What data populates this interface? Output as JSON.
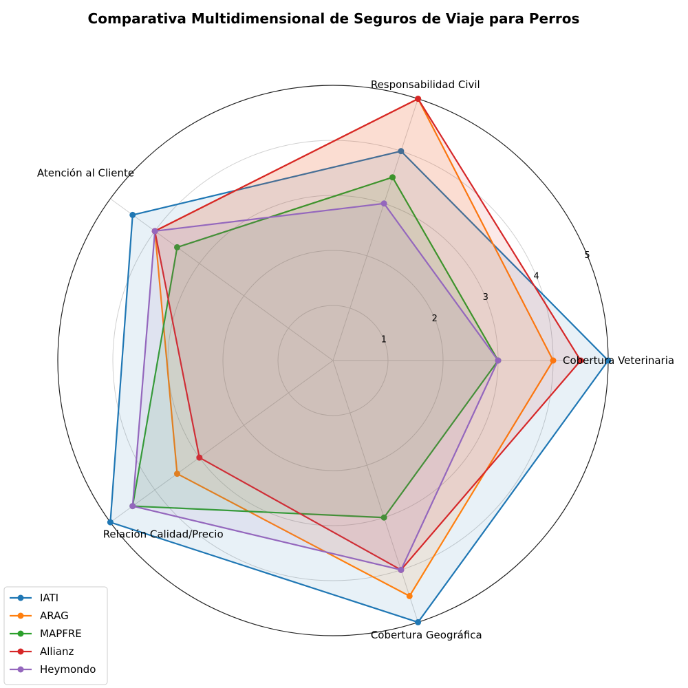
{
  "chart_data": {
    "type": "radar",
    "title": "Comparativa Multidimensional de Seguros de Viaje para Perros",
    "categories": [
      "Cobertura Veterinaria",
      "Responsabilidad Civil",
      "Atención al Cliente",
      "Relación Calidad/Precio",
      "Cobertura Geográfica"
    ],
    "rlim": [
      0,
      5
    ],
    "rticks": [
      "1",
      "2",
      "3",
      "4",
      "5"
    ],
    "grid": true,
    "legend_position": "bottom-left",
    "series": [
      {
        "name": "IATI",
        "color": "#1f77b4",
        "values": [
          5.0,
          4.0,
          4.5,
          5.0,
          5.0
        ]
      },
      {
        "name": "ARAG",
        "color": "#ff7f0e",
        "values": [
          4.0,
          5.0,
          4.0,
          3.5,
          4.5
        ]
      },
      {
        "name": "MAPFRE",
        "color": "#2ca02c",
        "values": [
          3.0,
          3.5,
          3.5,
          4.5,
          3.0
        ]
      },
      {
        "name": "Allianz",
        "color": "#d62728",
        "values": [
          4.5,
          5.0,
          4.0,
          3.0,
          4.0
        ]
      },
      {
        "name": "Heymondo",
        "color": "#9467bd",
        "values": [
          3.0,
          3.0,
          4.0,
          4.5,
          4.0
        ]
      }
    ]
  }
}
